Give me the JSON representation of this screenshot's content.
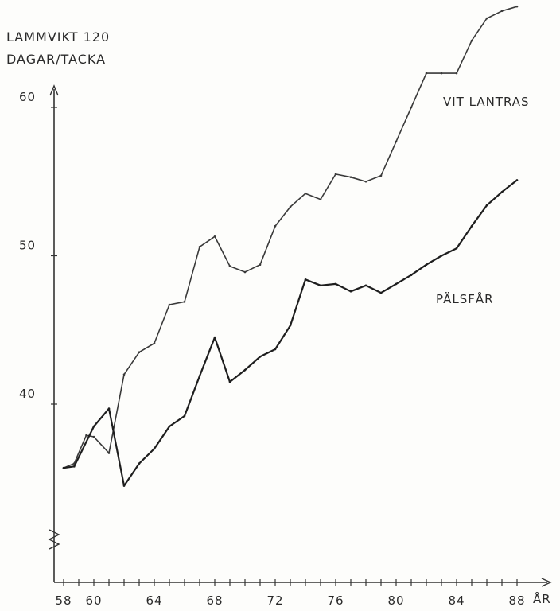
{
  "chart_data": {
    "type": "line",
    "ylabel_lines": [
      "LAMMVIKT 120",
      "DAGAR/TACKA"
    ],
    "xlabel": "ÅR",
    "xlim": [
      57,
      89
    ],
    "ylim": [
      30,
      67
    ],
    "x_ticks": [
      58,
      59,
      60,
      61,
      62,
      63,
      64,
      65,
      66,
      67,
      68,
      69,
      70,
      71,
      72,
      73,
      74,
      75,
      76,
      77,
      78,
      79,
      80,
      81,
      82,
      83,
      84,
      85,
      86,
      87,
      88
    ],
    "x_tick_labels": [
      {
        "x": 58,
        "label": "58"
      },
      {
        "x": 60,
        "label": "60"
      },
      {
        "x": 64,
        "label": "64"
      },
      {
        "x": 68,
        "label": "68"
      },
      {
        "x": 72,
        "label": "72"
      },
      {
        "x": 76,
        "label": "76"
      },
      {
        "x": 80,
        "label": "80"
      },
      {
        "x": 84,
        "label": "84"
      },
      {
        "x": 88,
        "label": "88"
      }
    ],
    "y_ticks": [
      40,
      50,
      60
    ],
    "y_tick_labels": [
      {
        "y": 40,
        "label": "40"
      },
      {
        "y": 50,
        "label": "50"
      },
      {
        "y": 60,
        "label": "60"
      }
    ],
    "axis_break": true,
    "grid": false,
    "series": [
      {
        "name": "VIT LANTRAS",
        "label_lines": [
          "VIT LANTRAS"
        ],
        "stroke": "#3a3a3a",
        "width": 1.6,
        "x": [
          58,
          58.7,
          59.5,
          60,
          61,
          62,
          63,
          64,
          65,
          66,
          67,
          68,
          69,
          70,
          71,
          72,
          73,
          74,
          75,
          76,
          77,
          78,
          79,
          80,
          81,
          82,
          83,
          84,
          85,
          86,
          87,
          88
        ],
        "values": [
          35.7,
          36.0,
          37.9,
          37.8,
          36.7,
          42.0,
          43.5,
          44.1,
          46.7,
          46.9,
          50.6,
          51.3,
          49.3,
          48.9,
          49.4,
          52.0,
          53.3,
          54.2,
          53.8,
          55.5,
          55.3,
          55.0,
          55.4,
          57.7,
          60.0,
          62.3,
          62.3,
          62.3,
          64.5,
          66.0,
          66.5,
          66.8
        ]
      },
      {
        "name": "PÄLSFÅR",
        "label_lines": [
          "PÄLSFÅR"
        ],
        "stroke": "#1e1e1e",
        "width": 2.2,
        "x": [
          58,
          58.7,
          60,
          61,
          62,
          63,
          64,
          65,
          66,
          67,
          68,
          69,
          70,
          71,
          72,
          73,
          74,
          75,
          76,
          77,
          78,
          79,
          80,
          81,
          82,
          83,
          84,
          85,
          86,
          87,
          88
        ],
        "values": [
          35.7,
          35.8,
          38.5,
          39.7,
          34.5,
          36.0,
          37.0,
          38.5,
          39.2,
          41.9,
          44.5,
          41.5,
          42.3,
          43.2,
          43.7,
          45.3,
          48.4,
          48.0,
          48.1,
          47.6,
          48.0,
          47.5,
          48.1,
          48.7,
          49.4,
          50.0,
          50.5,
          52.0,
          53.4,
          54.3,
          55.1
        ]
      }
    ]
  }
}
